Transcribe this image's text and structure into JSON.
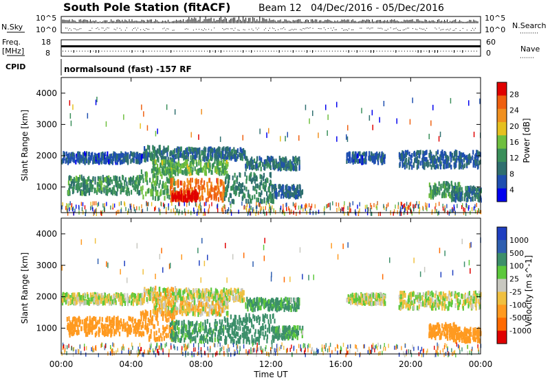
{
  "header": {
    "station": "South Pole Station (fitACF)",
    "beam": "Beam 12",
    "date_range": "04/Dec/2016 - 05/Dec/2016"
  },
  "aux_panels": {
    "nsky_label": "N.Sky",
    "nsky_ticks": [
      "10^5",
      "10^0"
    ],
    "nsearch_label": "N.Search",
    "freq_label_1": "Freq.",
    "freq_label_2": "[MHz]",
    "freq_ticks": [
      "18",
      "8"
    ],
    "nave_label": "Nave",
    "nave_ticks": [
      "60",
      "0"
    ],
    "cpid_label": "CPID",
    "cpid_text": "normalsound (fast) -157 RF"
  },
  "colors": {
    "power_scale": [
      "#0000ee",
      "#1f4fb0",
      "#2f6f6f",
      "#3a8f5a",
      "#6fbf3f",
      "#e6c020",
      "#f09020",
      "#ef6010",
      "#e00000"
    ],
    "velocity_scale": [
      "#e00000",
      "#ff6a00",
      "#ff9a20",
      "#f0c040",
      "#c8c8c0",
      "#5cc83c",
      "#3c8f6a",
      "#2f5fb0",
      "#1f3fc0"
    ]
  },
  "chart_data": [
    {
      "type": "heatmap",
      "name": "power",
      "ylabel": "Slant Range [km]",
      "yticks": [
        "1000",
        "2000",
        "3000",
        "4000"
      ],
      "ylim": [
        180,
        4500
      ],
      "xlim": [
        0,
        24
      ],
      "colorbar_label": "Power [dB]",
      "colorbar_ticks": [
        "4",
        "8",
        "12",
        "16",
        "20",
        "24",
        "28"
      ],
      "colorbar_range": [
        0,
        30
      ],
      "bands": [
        {
          "t0": 0.0,
          "t1": 4.7,
          "r0": 1850,
          "r1": 2150,
          "v": 6
        },
        {
          "t0": 4.7,
          "t1": 6.5,
          "r0": 1900,
          "r1": 2350,
          "v": 9
        },
        {
          "t0": 6.5,
          "t1": 10.5,
          "r0": 1950,
          "r1": 2300,
          "v": 8
        },
        {
          "t0": 10.5,
          "t1": 13.6,
          "r0": 1650,
          "r1": 2000,
          "v": 8
        },
        {
          "t0": 5.2,
          "t1": 9.5,
          "r0": 1500,
          "r1": 1900,
          "v": 14
        },
        {
          "t0": 0.3,
          "t1": 4.5,
          "r0": 850,
          "r1": 1400,
          "v": 11
        },
        {
          "t0": 4.5,
          "t1": 6.5,
          "r0": 700,
          "r1": 1600,
          "v": 13
        },
        {
          "t0": 6.2,
          "t1": 9.3,
          "r0": 650,
          "r1": 1300,
          "v": 24
        },
        {
          "t0": 6.3,
          "t1": 7.8,
          "r0": 650,
          "r1": 900,
          "v": 29
        },
        {
          "t0": 9.3,
          "t1": 12.2,
          "r0": 600,
          "r1": 1500,
          "v": 10
        },
        {
          "t0": 12.0,
          "t1": 13.8,
          "r0": 750,
          "r1": 1100,
          "v": 7
        },
        {
          "t0": 16.3,
          "t1": 18.5,
          "r0": 1850,
          "r1": 2150,
          "v": 6
        },
        {
          "t0": 19.3,
          "t1": 24.0,
          "r0": 1700,
          "r1": 2200,
          "v": 7
        },
        {
          "t0": 21.0,
          "t1": 22.8,
          "r0": 750,
          "r1": 1200,
          "v": 12
        },
        {
          "t0": 22.3,
          "t1": 24.0,
          "r0": 650,
          "r1": 1050,
          "v": 8
        }
      ]
    },
    {
      "type": "heatmap",
      "name": "velocity",
      "ylabel": "Slant Range [km]",
      "yticks": [
        "1000",
        "2000",
        "3000",
        "4000"
      ],
      "ylim": [
        180,
        4500
      ],
      "xlim": [
        0,
        24
      ],
      "xlabel": "Time UT",
      "xticks": [
        "00:00",
        "04:00",
        "08:00",
        "12:00",
        "16:00",
        "20:00",
        "00:00"
      ],
      "colorbar_label": "Velocity [m s^-1]",
      "colorbar_ticks": [
        "-1000",
        "-500",
        "-100",
        "-25",
        "25",
        "100",
        "500",
        "1000"
      ],
      "bands": [
        {
          "t0": 0.0,
          "t1": 4.7,
          "r0": 1850,
          "r1": 2150,
          "v": 0
        },
        {
          "t0": 4.7,
          "t1": 6.5,
          "r0": 1900,
          "r1": 2350,
          "v": -40
        },
        {
          "t0": 6.5,
          "t1": 10.5,
          "r0": 1950,
          "r1": 2300,
          "v": 0
        },
        {
          "t0": 10.5,
          "t1": 13.6,
          "r0": 1650,
          "r1": 2000,
          "v": 120
        },
        {
          "t0": 5.2,
          "t1": 9.5,
          "r0": 1500,
          "r1": 1900,
          "v": -60
        },
        {
          "t0": 0.3,
          "t1": 4.5,
          "r0": 850,
          "r1": 1400,
          "v": -300
        },
        {
          "t0": 4.5,
          "t1": 6.5,
          "r0": 700,
          "r1": 1600,
          "v": -300
        },
        {
          "t0": 6.2,
          "t1": 9.3,
          "r0": 650,
          "r1": 1300,
          "v": 150
        },
        {
          "t0": 9.3,
          "t1": 12.2,
          "r0": 600,
          "r1": 1500,
          "v": 250
        },
        {
          "t0": 12.0,
          "t1": 13.8,
          "r0": 750,
          "r1": 1100,
          "v": 120
        },
        {
          "t0": 16.3,
          "t1": 18.5,
          "r0": 1850,
          "r1": 2150,
          "v": 0
        },
        {
          "t0": 19.3,
          "t1": 24.0,
          "r0": 1700,
          "r1": 2200,
          "v": 0
        },
        {
          "t0": 21.0,
          "t1": 22.8,
          "r0": 750,
          "r1": 1200,
          "v": -300
        },
        {
          "t0": 22.3,
          "t1": 24.0,
          "r0": 650,
          "r1": 1050,
          "v": -300
        }
      ]
    }
  ]
}
